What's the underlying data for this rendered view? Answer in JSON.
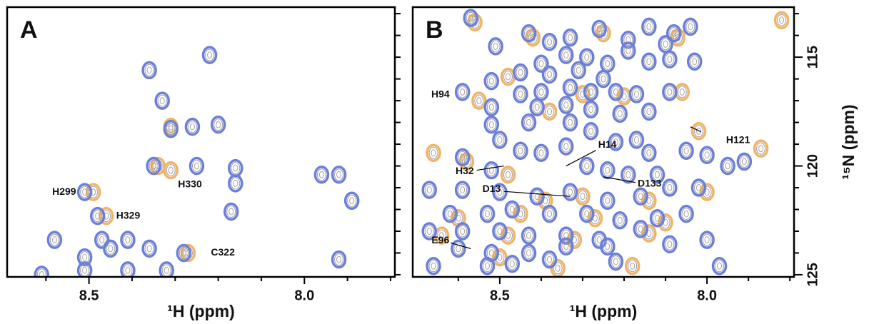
{
  "chart_data": [
    {
      "type": "scatter",
      "panel_label": "A",
      "xlabel": "¹H (ppm)",
      "xlim": [
        8.69,
        7.79
      ],
      "ylim": [
        112.7,
        125.1
      ],
      "xticks": [
        8.5,
        {
          "value": 8,
          "label": "8.0"
        }
      ],
      "xminorticks": [
        8.6,
        8.4,
        8.3,
        8.2,
        8.1,
        7.9,
        7.8
      ],
      "yticks": [
        113,
        114,
        115,
        116,
        117,
        118,
        119,
        120,
        121,
        122,
        123,
        124,
        125
      ],
      "ytick_labels": false,
      "series": [
        {
          "color": "#f2b363",
          "x": [
            8.49,
            8.46,
            8.27,
            8.31,
            8.31,
            8.34
          ],
          "values": [
            121.2,
            122.3,
            124.0,
            120.2,
            118.2,
            120.0
          ]
        },
        {
          "color": "#6b7fd9",
          "x": [
            8.22,
            8.36,
            8.33,
            8.31,
            8.26,
            8.2,
            8.35,
            8.25,
            8.16,
            7.96,
            7.92,
            7.89,
            8.16,
            8.51,
            8.48,
            8.17,
            8.47,
            8.45,
            8.41,
            8.36,
            8.28,
            8.58,
            8.51,
            7.92,
            8.51,
            8.41,
            8.32,
            8.61
          ],
          "values": [
            114.9,
            115.6,
            117.0,
            118.3,
            118.2,
            118.1,
            120.0,
            120.0,
            120.1,
            120.4,
            120.4,
            121.6,
            120.8,
            121.2,
            122.3,
            122.1,
            123.4,
            123.8,
            123.4,
            123.8,
            124.0,
            123.4,
            124.2,
            124.3,
            124.8,
            124.8,
            124.8,
            125.0
          ]
        }
      ],
      "annotations": [
        {
          "text": "H299",
          "x": 8.51,
          "y": 121.2
        },
        {
          "text": "H329",
          "x": 8.46,
          "y": 122.3
        },
        {
          "text": "H330",
          "x": 8.31,
          "y": 120.3
        },
        {
          "text": "C322",
          "x": 8.27,
          "y": 124.0
        }
      ]
    },
    {
      "type": "scatter",
      "panel_label": "B",
      "xlabel": "¹H (ppm)",
      "ylabel": "¹⁵N (ppm)",
      "xlim": [
        8.71,
        7.79
      ],
      "ylim": [
        112.7,
        125.1
      ],
      "xticks": [
        8.5,
        {
          "value": 8,
          "label": "8.0"
        }
      ],
      "xminorticks": [
        8.6,
        8.4,
        8.3,
        8.2,
        8.1,
        7.9,
        7.8
      ],
      "yticks": [
        115,
        120,
        125
      ],
      "yminorticks": [
        113,
        114,
        116,
        117,
        118,
        119,
        121,
        122,
        123,
        124
      ],
      "ytick_labels": true,
      "series": [
        {
          "color": "#f2b363",
          "x": [
            8.56,
            8.42,
            8.25,
            8.07,
            7.82,
            8.48,
            8.3,
            8.2,
            8.06,
            8.55,
            8.38,
            8.02,
            8.58,
            8.48,
            8.39,
            8.3,
            8.14,
            8.0,
            8.6,
            8.45,
            8.27,
            8.1,
            8.64,
            8.48,
            8.32,
            8.14,
            8.5,
            8.36,
            8.18,
            7.87,
            8.66
          ],
          "values": [
            113.4,
            114.1,
            113.9,
            114.1,
            113.3,
            115.9,
            116.7,
            116.8,
            116.6,
            117.0,
            117.5,
            118.4,
            119.8,
            120.4,
            121.6,
            121.4,
            121.6,
            121.2,
            122.4,
            122.2,
            122.4,
            122.6,
            123.2,
            123.2,
            123.4,
            123.1,
            124.2,
            124.7,
            124.6,
            119.2,
            119.4
          ]
        },
        {
          "color": "#6b7fd9",
          "x": [
            8.57,
            8.51,
            8.43,
            8.38,
            8.33,
            8.26,
            8.19,
            8.14,
            8.08,
            8.04,
            8.1,
            8.19,
            8.24,
            8.29,
            8.34,
            8.4,
            8.45,
            8.38,
            8.31,
            8.25,
            8.14,
            8.09,
            8.03,
            8.52,
            8.45,
            8.4,
            8.33,
            8.28,
            8.22,
            8.17,
            8.09,
            8.59,
            8.52,
            8.41,
            8.34,
            8.28,
            8.21,
            8.14,
            8.52,
            8.43,
            8.33,
            8.28,
            8.22,
            8.17,
            8.14,
            8.05,
            8.0,
            7.95,
            7.91,
            8.5,
            8.45,
            8.4,
            8.34,
            8.29,
            8.24,
            8.19,
            8.12,
            8.52,
            8.59,
            8.67,
            8.59,
            8.5,
            8.41,
            8.33,
            8.24,
            8.16,
            8.09,
            8.02,
            8.62,
            8.53,
            8.47,
            8.38,
            8.29,
            8.21,
            8.12,
            8.05,
            8.67,
            8.59,
            8.5,
            8.43,
            8.34,
            8.26,
            8.16,
            8.0,
            8.6,
            8.52,
            8.43,
            8.34,
            8.24,
            8.09,
            8.66,
            8.53,
            8.47,
            8.38,
            8.22,
            7.97
          ],
          "values": [
            113.2,
            114.5,
            113.9,
            114.3,
            114.1,
            113.7,
            114.2,
            113.6,
            113.9,
            113.6,
            114.4,
            114.7,
            115.3,
            115.0,
            114.9,
            115.3,
            115.7,
            115.8,
            115.6,
            116.0,
            115.2,
            115.1,
            115.2,
            116.1,
            116.7,
            116.6,
            116.4,
            116.6,
            116.6,
            116.7,
            116.6,
            116.6,
            117.3,
            117.3,
            117.2,
            117.4,
            117.6,
            117.5,
            118.1,
            118.0,
            118.0,
            118.4,
            118.9,
            118.8,
            119.4,
            119.3,
            119.5,
            120.0,
            119.8,
            118.8,
            119.3,
            119.4,
            119.1,
            120.0,
            120.2,
            120.4,
            120.4,
            120.2,
            119.6,
            121.1,
            121.1,
            121.2,
            121.4,
            121.2,
            121.6,
            121.4,
            121.0,
            121.0,
            122.2,
            122.2,
            122.0,
            122.2,
            122.2,
            122.5,
            122.4,
            122.2,
            123.0,
            123.0,
            123.0,
            123.2,
            123.2,
            123.4,
            122.9,
            123.4,
            123.8,
            124.0,
            124.0,
            123.7,
            123.7,
            123.6,
            124.6,
            124.6,
            124.5,
            124.3,
            124.4,
            124.6
          ]
        }
      ],
      "annotations": [
        {
          "text": "H94",
          "x": 8.59,
          "y": 116.6
        },
        {
          "text": "H121",
          "x": 8.04,
          "y": 118.2
        },
        {
          "text": "H14",
          "x": 8.34,
          "y": 120.0
        },
        {
          "text": "H32",
          "x": 8.49,
          "y": 120.0
        },
        {
          "text": "D13",
          "x": 8.33,
          "y": 121.4
        },
        {
          "text": "D133",
          "x": 8.25,
          "y": 120.5
        },
        {
          "text": "E96",
          "x": 8.57,
          "y": 123.8
        }
      ]
    }
  ]
}
